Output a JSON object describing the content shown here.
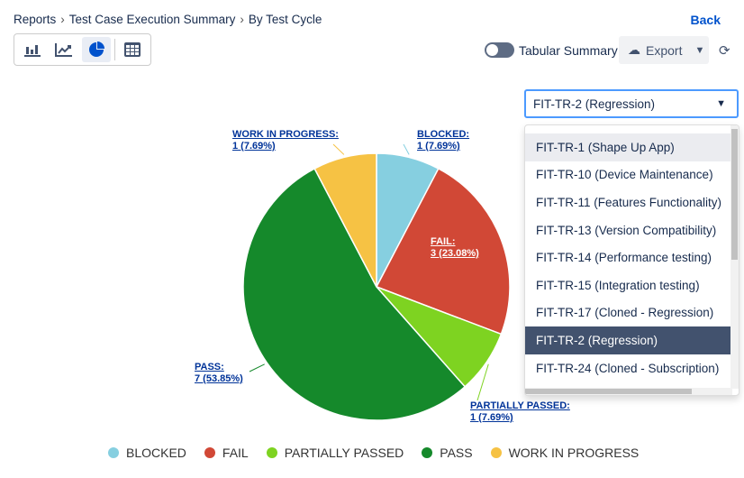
{
  "breadcrumb": {
    "items": [
      "Reports",
      "Test Case Execution Summary",
      "By Test Cycle"
    ]
  },
  "back_label": "Back",
  "toolbar": {
    "icons": [
      "bar-chart-icon",
      "line-chart-icon",
      "pie-chart-icon",
      "table-icon"
    ],
    "active": "pie-chart-icon"
  },
  "tabular_summary": {
    "label": "Tabular Summary",
    "on": false
  },
  "export_label": "Export",
  "cycle_select": {
    "value": "FIT-TR-2 (Regression)",
    "options": [
      "FIT-TR-1 (Shape Up App)",
      "FIT-TR-10 (Device Maintenance)",
      "FIT-TR-11 (Features Functionality)",
      "FIT-TR-13 (Version Compatibility)",
      "FIT-TR-14 (Performance testing)",
      "FIT-TR-15 (Integration testing)",
      "FIT-TR-17 (Cloned - Regression)",
      "FIT-TR-2 (Regression)",
      "FIT-TR-24 (Cloned - Subscription)"
    ],
    "hovered": "FIT-TR-1 (Shape Up App)",
    "selected": "FIT-TR-2 (Regression)"
  },
  "chart_data": {
    "type": "pie",
    "categories": [
      "BLOCKED",
      "FAIL",
      "PARTIALLY PASSED",
      "PASS",
      "WORK IN PROGRESS"
    ],
    "values": [
      1,
      3,
      1,
      7,
      1
    ],
    "labels": [
      {
        "name": "BLOCKED:",
        "value": "1 (7.69%)"
      },
      {
        "name": "FAIL:",
        "value": "3 (23.08%)"
      },
      {
        "name": "PARTIALLY PASSED:",
        "value": "1 (7.69%)"
      },
      {
        "name": "PASS:",
        "value": "7 (53.85%)"
      },
      {
        "name": "WORK IN PROGRESS:",
        "value": "1 (7.69%)"
      }
    ],
    "colors": [
      "#86cfe0",
      "#d14836",
      "#7ed321",
      "#15892b",
      "#f6c244"
    ],
    "legend": "bottom"
  }
}
